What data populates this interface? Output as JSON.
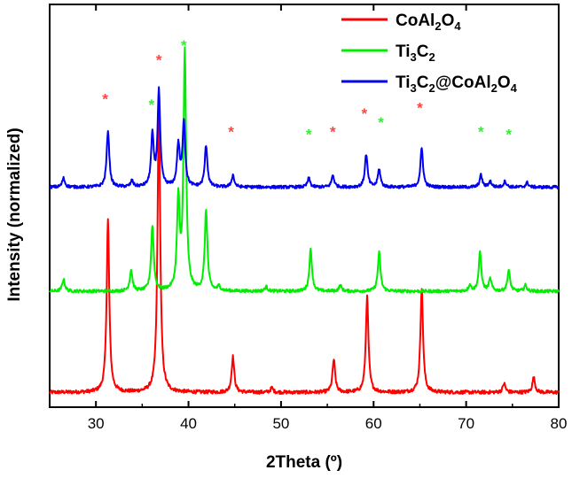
{
  "chart_data": {
    "type": "line",
    "xlabel": "2Theta (º)",
    "ylabel": "Intensity (normalized)",
    "xlim": [
      25,
      80
    ],
    "xticks": [
      30,
      40,
      50,
      60,
      70,
      80
    ],
    "yticks_shown": false,
    "grid": false,
    "legend_position": "top-right",
    "series": [
      {
        "name": "CoAl2O4",
        "legend_parts": [
          [
            "CoAl",
            ""
          ],
          [
            "2",
            "sub"
          ],
          [
            "O",
            ""
          ],
          [
            "4",
            "sub"
          ]
        ],
        "color": "#ff0000",
        "baseline": 0.02,
        "noise": 0.006,
        "peaks": [
          {
            "x": 31.3,
            "h": 0.58
          },
          {
            "x": 36.8,
            "h": 0.97
          },
          {
            "x": 44.8,
            "h": 0.12
          },
          {
            "x": 49.0,
            "h": 0.015
          },
          {
            "x": 55.7,
            "h": 0.11
          },
          {
            "x": 59.3,
            "h": 0.32
          },
          {
            "x": 65.2,
            "h": 0.35
          },
          {
            "x": 74.1,
            "h": 0.03
          },
          {
            "x": 77.3,
            "h": 0.05
          }
        ]
      },
      {
        "name": "Ti3C2",
        "legend_parts": [
          [
            "Ti",
            ""
          ],
          [
            "3",
            "sub"
          ],
          [
            "C",
            ""
          ],
          [
            "2",
            "sub"
          ]
        ],
        "color": "#00ee00",
        "baseline": 0.36,
        "noise": 0.005,
        "peaks": [
          {
            "x": 26.5,
            "h": 0.04
          },
          {
            "x": 33.8,
            "h": 0.07
          },
          {
            "x": 36.1,
            "h": 0.22
          },
          {
            "x": 38.9,
            "h": 0.3
          },
          {
            "x": 39.6,
            "h": 0.8
          },
          {
            "x": 41.9,
            "h": 0.27
          },
          {
            "x": 43.3,
            "h": 0.015
          },
          {
            "x": 48.4,
            "h": 0.015
          },
          {
            "x": 53.2,
            "h": 0.14
          },
          {
            "x": 56.4,
            "h": 0.02
          },
          {
            "x": 60.6,
            "h": 0.13
          },
          {
            "x": 70.4,
            "h": 0.02
          },
          {
            "x": 71.5,
            "h": 0.13
          },
          {
            "x": 72.6,
            "h": 0.04
          },
          {
            "x": 74.6,
            "h": 0.07
          },
          {
            "x": 76.4,
            "h": 0.02
          }
        ]
      },
      {
        "name": "Ti3C2@CoAl2O4",
        "legend_parts": [
          [
            "Ti",
            ""
          ],
          [
            "3",
            "sub"
          ],
          [
            "C",
            ""
          ],
          [
            "2",
            "sub"
          ],
          [
            "@CoAl",
            ""
          ],
          [
            "2",
            "sub"
          ],
          [
            "O",
            ""
          ],
          [
            "4",
            "sub"
          ]
        ],
        "color": "#0000ee",
        "baseline": 0.71,
        "noise": 0.005,
        "peaks": [
          {
            "x": 26.5,
            "h": 0.03
          },
          {
            "x": 31.3,
            "h": 0.19
          },
          {
            "x": 33.9,
            "h": 0.02
          },
          {
            "x": 36.1,
            "h": 0.17
          },
          {
            "x": 36.8,
            "h": 0.32
          },
          {
            "x": 38.9,
            "h": 0.14
          },
          {
            "x": 39.5,
            "h": 0.22
          },
          {
            "x": 41.9,
            "h": 0.14
          },
          {
            "x": 44.8,
            "h": 0.04
          },
          {
            "x": 53.0,
            "h": 0.03
          },
          {
            "x": 55.6,
            "h": 0.04
          },
          {
            "x": 59.2,
            "h": 0.11
          },
          {
            "x": 60.6,
            "h": 0.06
          },
          {
            "x": 65.2,
            "h": 0.13
          },
          {
            "x": 71.6,
            "h": 0.04
          },
          {
            "x": 72.6,
            "h": 0.02
          },
          {
            "x": 74.2,
            "h": 0.02
          },
          {
            "x": 76.6,
            "h": 0.015
          }
        ]
      }
    ],
    "annotations": [
      {
        "text": "*",
        "x": 31.0,
        "color": "#ff4444",
        "y": 0.99
      },
      {
        "text": "*",
        "x": 36.8,
        "color": "#ff4444",
        "y": 1.12
      },
      {
        "text": "*",
        "x": 44.6,
        "color": "#ff4444",
        "y": 0.88
      },
      {
        "text": "*",
        "x": 55.6,
        "color": "#ff4444",
        "y": 0.88
      },
      {
        "text": "*",
        "x": 59.0,
        "color": "#ff4444",
        "y": 0.94
      },
      {
        "text": "*",
        "x": 65.0,
        "color": "#ff4444",
        "y": 0.96
      },
      {
        "text": "*",
        "x": 36.0,
        "color": "#33ee33",
        "y": 0.97
      },
      {
        "text": "*",
        "x": 39.5,
        "color": "#33ee33",
        "y": 1.17
      },
      {
        "text": "*",
        "x": 53.0,
        "color": "#33ee33",
        "y": 0.87
      },
      {
        "text": "*",
        "x": 60.8,
        "color": "#33ee33",
        "y": 0.91
      },
      {
        "text": "*",
        "x": 71.6,
        "color": "#33ee33",
        "y": 0.88
      },
      {
        "text": "*",
        "x": 74.6,
        "color": "#33ee33",
        "y": 0.87
      }
    ]
  }
}
